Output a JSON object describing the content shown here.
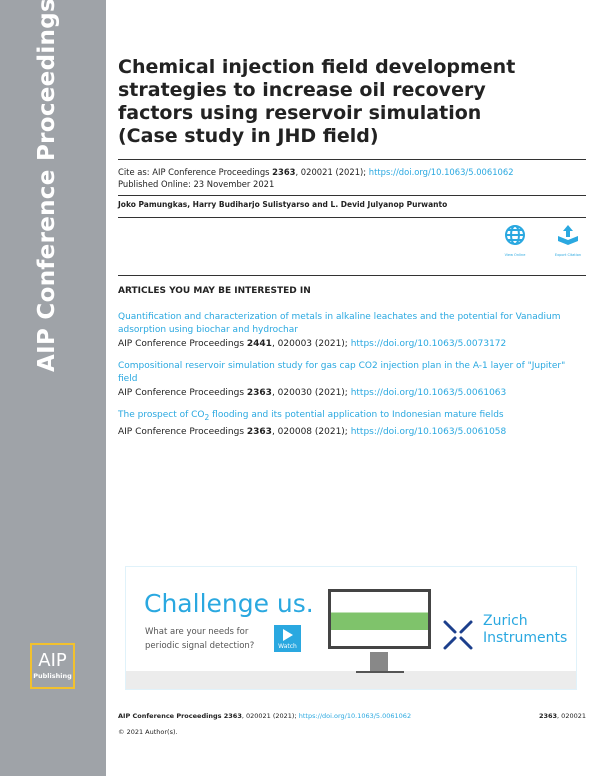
{
  "sidebar": {
    "vertical_title": "AIP Conference Proceedings",
    "logo_top": "AIP",
    "logo_bottom": "Publishing"
  },
  "title": "Chemical injection field development strategies to increase oil recovery factors using reservoir simulation (Case study in JHD field)",
  "cite": {
    "prefix": "Cite as: AIP Conference Proceedings ",
    "volume": "2363",
    "rest": ", 020021 (2021); ",
    "doi": "https://doi.org/10.1063/5.0061062"
  },
  "published": "Published Online: 23 November 2021",
  "authors": "Joko Pamungkas, Harry Budiharjo Sulistyarso and L. Devid Julyanop Purwanto",
  "actions": {
    "view_online": "View Online",
    "export_citation": "Export Citation"
  },
  "related_heading": "ARTICLES YOU MAY BE INTERESTED IN",
  "articles": [
    {
      "title": "Quantification and characterization of metals in alkaline leachates and the potential for Vanadium adsorption using biochar and hydrochar",
      "journal": "AIP Conference Proceedings ",
      "volume": "2441",
      "rest": ", 020003 (2021); ",
      "doi": "https://doi.org/10.1063/5.0073172"
    },
    {
      "title": "Compositional reservoir simulation study for gas cap CO2 injection plan in the A-1 layer of \"Jupiter\" field",
      "journal": "AIP Conference Proceedings ",
      "volume": "2363",
      "rest": ", 020030 (2021); ",
      "doi": "https://doi.org/10.1063/5.0061063"
    },
    {
      "title_pre": "The prospect of CO",
      "title_sub": "2",
      "title_post": " flooding and its potential application to Indonesian mature fields",
      "journal": "AIP Conference Proceedings ",
      "volume": "2363",
      "rest": ", 020008 (2021); ",
      "doi": "https://doi.org/10.1063/5.0061058"
    }
  ],
  "ad": {
    "headline": "Challenge us.",
    "line1": "What are your needs for",
    "line2": "periodic signal detection?",
    "watch": "Watch",
    "brand1": "Zurich",
    "brand2": "Instruments"
  },
  "footer": {
    "journal": "AIP Conference Proceedings ",
    "volume": "2363",
    "rest": ", 020021 (2021); ",
    "doi": "https://doi.org/10.1063/5.0061062",
    "right_volume": "2363",
    "right_rest": ", 020021",
    "copyright": "© 2021 Author(s)."
  }
}
